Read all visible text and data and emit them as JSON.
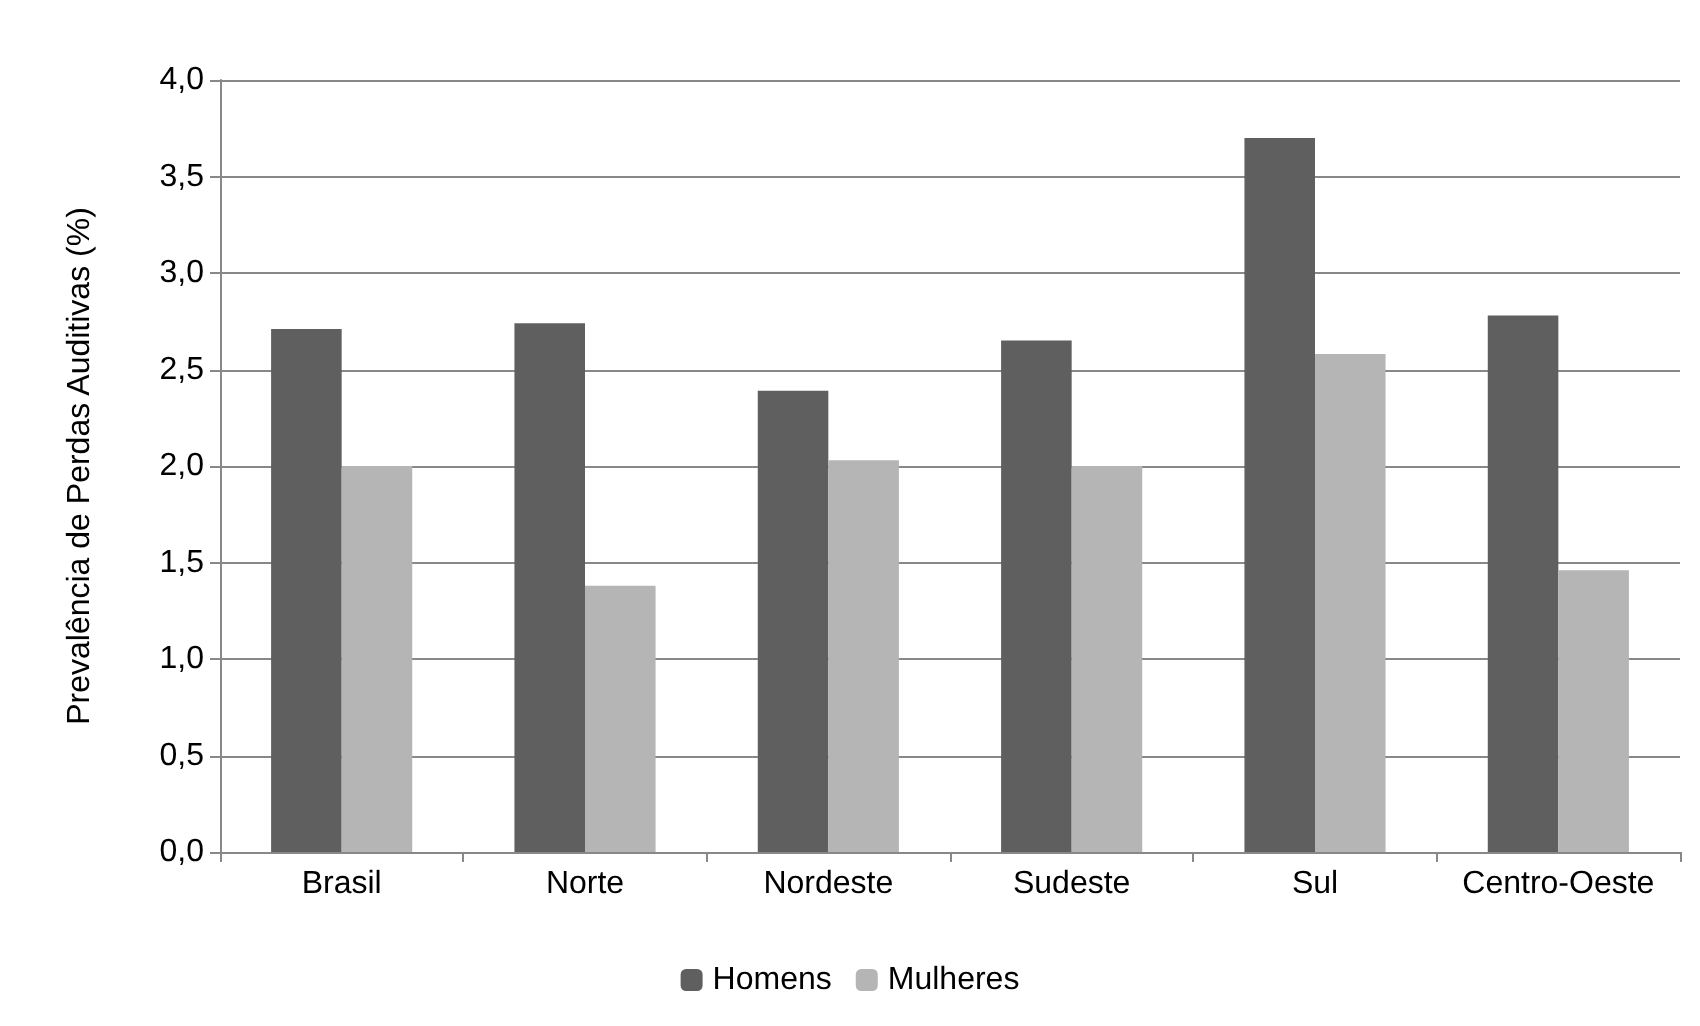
{
  "chart_data": {
    "type": "bar",
    "ylabel": "Prevalência de Perdas Auditivas (%)",
    "categories": [
      "Brasil",
      "Norte",
      "Nordeste",
      "Sudeste",
      "Sul",
      "Centro-Oeste"
    ],
    "series": [
      {
        "name": "Homens",
        "color": "#5f5f5f",
        "values": [
          2.71,
          2.74,
          2.39,
          2.65,
          3.7,
          2.78
        ]
      },
      {
        "name": "Mulheres",
        "color": "#b5b5b5",
        "values": [
          2.0,
          1.38,
          2.03,
          2.0,
          2.58,
          1.46
        ]
      }
    ],
    "ylim": [
      0,
      4
    ],
    "yticks": [
      {
        "value": 0,
        "label": "0,0"
      },
      {
        "value": 0.5,
        "label": "0,5"
      },
      {
        "value": 1,
        "label": "1,0"
      },
      {
        "value": 1.5,
        "label": "1,5"
      },
      {
        "value": 2,
        "label": "2,0"
      },
      {
        "value": 2.5,
        "label": "2,5"
      },
      {
        "value": 3,
        "label": "3,0"
      },
      {
        "value": 3.5,
        "label": "3,5"
      },
      {
        "value": 4,
        "label": "4,0"
      }
    ],
    "grid": "y",
    "legend": "bottom"
  }
}
